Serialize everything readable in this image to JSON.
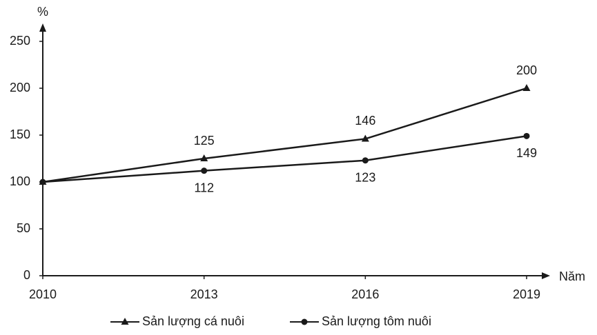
{
  "chart_data": {
    "type": "line",
    "x_label": "Năm",
    "y_label": "%",
    "x": [
      2010,
      2013,
      2016,
      2019
    ],
    "xlim": [
      2010,
      2019
    ],
    "xticks": [
      2010,
      2013,
      2016,
      2019
    ],
    "ylim": [
      0,
      250
    ],
    "yticks": [
      0,
      50,
      100,
      150,
      200,
      250
    ],
    "series": [
      {
        "name": "Sản lượng cá nuôi",
        "color": "#1a1a1a",
        "marker": "triangle",
        "label_position": "above",
        "values": [
          100,
          125,
          146,
          200
        ],
        "value_labels": [
          null,
          "125",
          "146",
          "200"
        ]
      },
      {
        "name": "Sản lượng tôm nuôi",
        "color": "#1a1a1a",
        "marker": "circle",
        "label_position": "below",
        "values": [
          100,
          112,
          123,
          149
        ],
        "value_labels": [
          null,
          "112",
          "123",
          "149"
        ]
      }
    ]
  }
}
